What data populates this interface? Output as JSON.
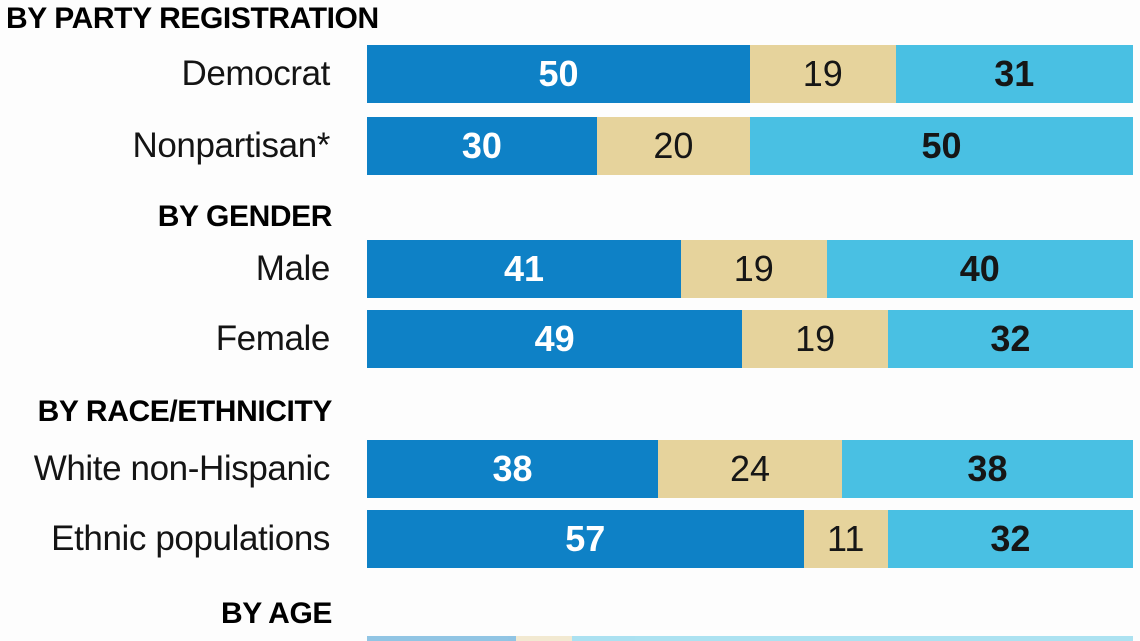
{
  "page": {
    "background_color": "#fdfdfd",
    "text_color": "#141414"
  },
  "chart_data": {
    "type": "bar",
    "variant": "horizontal-stacked",
    "orientation": "horizontal",
    "value_unit": "percent",
    "axis_range_pct": [
      0,
      100
    ],
    "grid": false,
    "legend_visible": false,
    "series_colors": [
      "#0e81c6",
      "#e6d39c",
      "#49c0e3"
    ],
    "value_text_colors": [
      "#ffffff",
      "#161616",
      "#161616"
    ],
    "sections": [
      {
        "header": "BY PARTY REGISTRATION",
        "rows": [
          {
            "label": "Democrat",
            "values": [
              50,
              19,
              31
            ]
          },
          {
            "label": "Nonpartisan*",
            "values": [
              30,
              20,
              50
            ]
          }
        ]
      },
      {
        "header": "BY GENDER",
        "rows": [
          {
            "label": "Male",
            "values": [
              41,
              19,
              40
            ]
          },
          {
            "label": "Female",
            "values": [
              49,
              19,
              32
            ]
          }
        ]
      },
      {
        "header": "BY RACE/ETHNICITY",
        "rows": [
          {
            "label": "White non-Hispanic",
            "values": [
              38,
              24,
              38
            ]
          },
          {
            "label": "Ethnic populations",
            "values": [
              57,
              11,
              32
            ]
          }
        ]
      },
      {
        "header": "BY AGE",
        "rows": []
      }
    ],
    "bottom_partial_row": {
      "section": "BY AGE",
      "segments_pct": [
        19.4,
        7.3,
        73.3
      ]
    }
  }
}
